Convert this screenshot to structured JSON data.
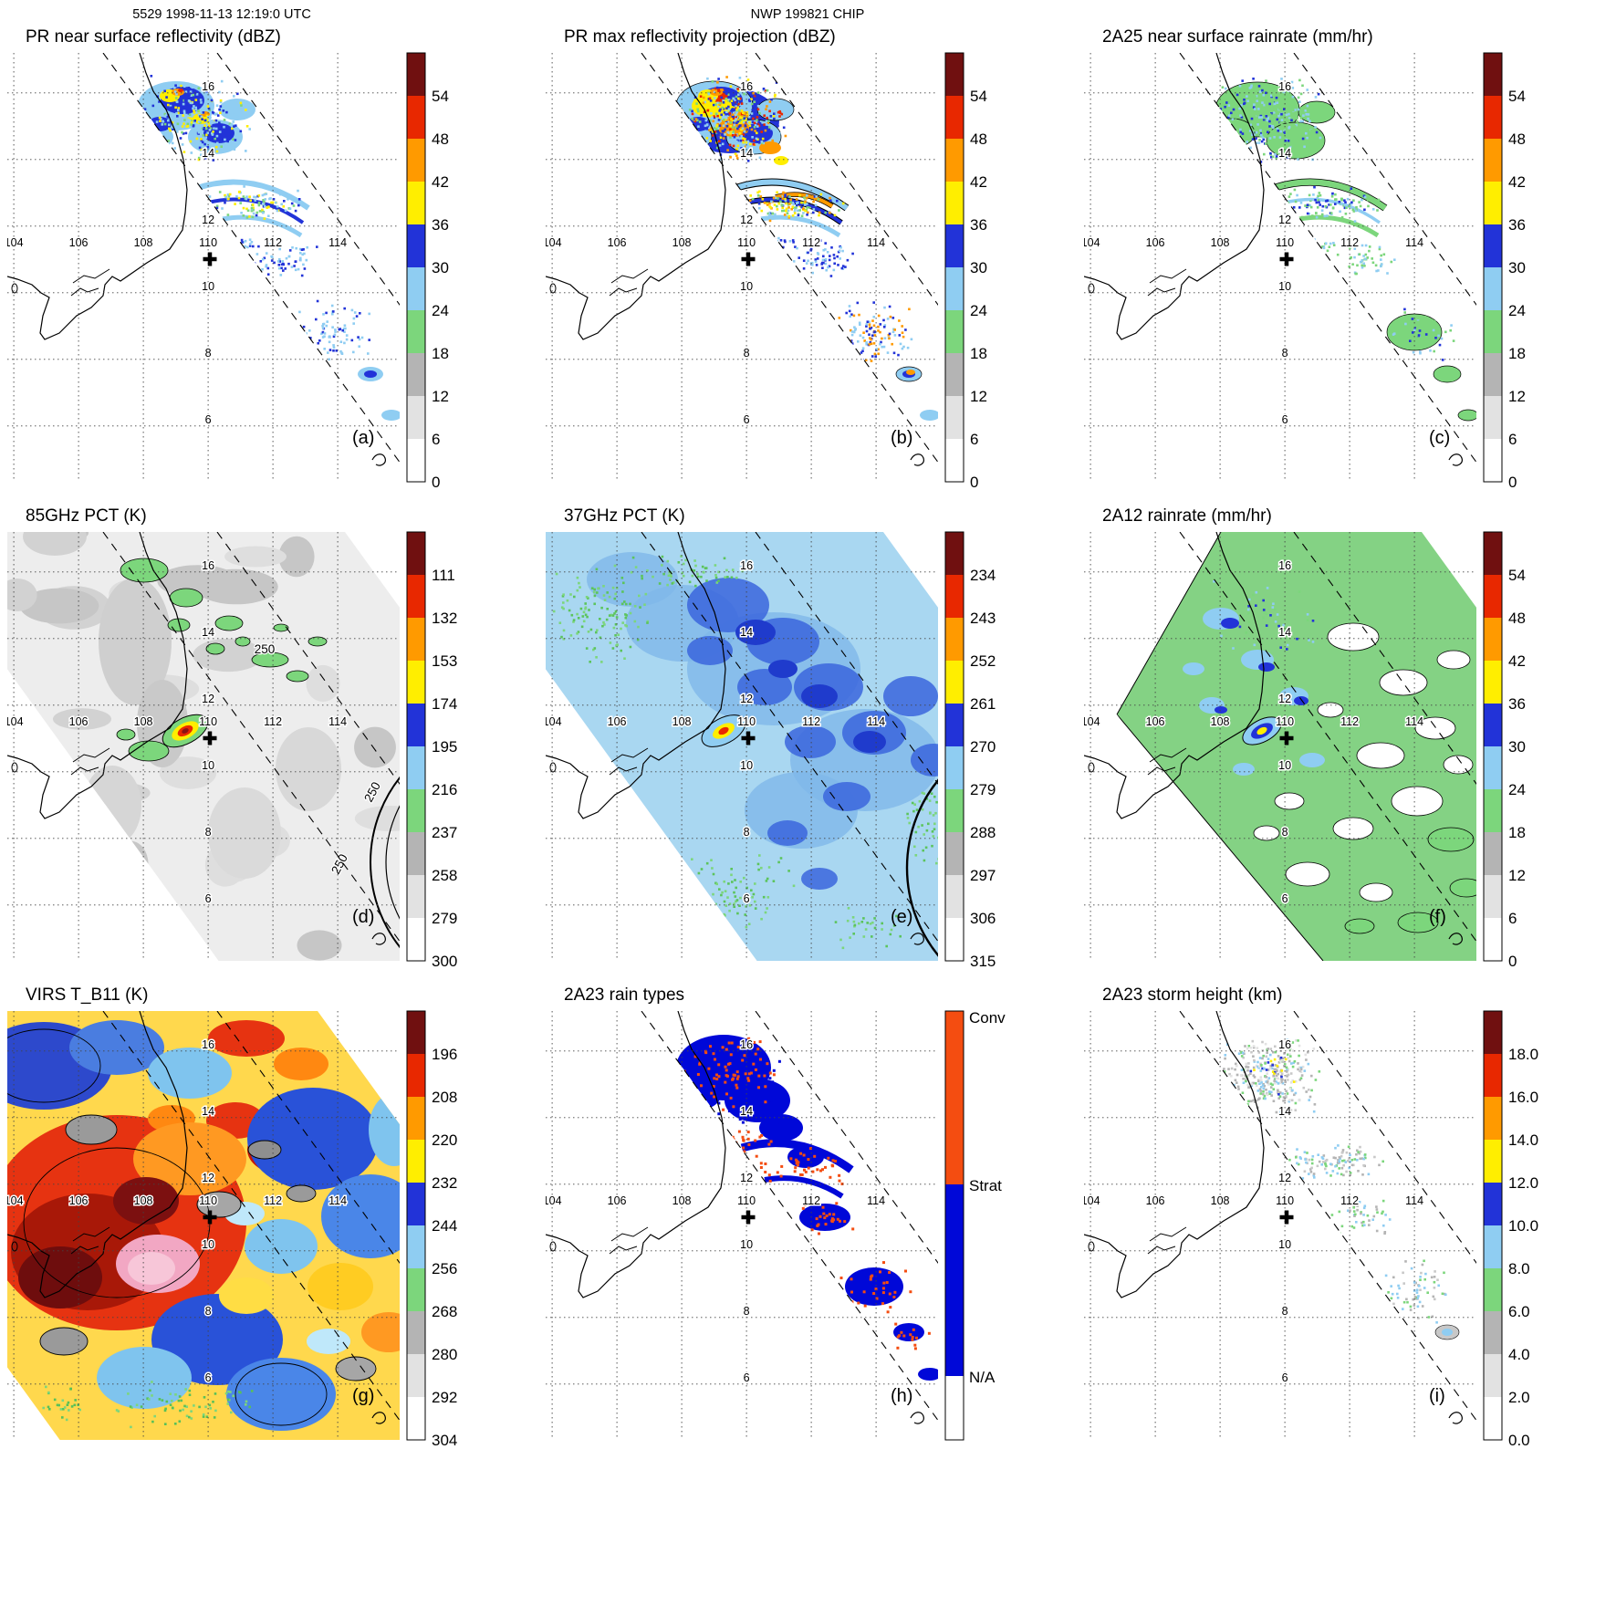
{
  "header": {
    "left": "5529 1998-11-13 12:19:0 UTC",
    "center": "NWP 199821 CHIP"
  },
  "colors": {
    "background": "#ffffff",
    "scale10": [
      "#ffffff",
      "#e2e2e2",
      "#b4b4b4",
      "#7cd67c",
      "#8fcdf2",
      "#2233d8",
      "#ffee00",
      "#ff9a00",
      "#e82800",
      "#701010"
    ],
    "rain_types": {
      "conv": "#f44d11",
      "strat": "#0008d8",
      "na": "#ffffff"
    }
  },
  "chart_data": {
    "type": "heatmap",
    "subtype": "satellite-map-panel-grid",
    "grid": "3x3",
    "projection": "lon-lat",
    "lon_ticks": [
      104,
      106,
      108,
      110,
      112,
      114
    ],
    "lat_ticks": [
      16,
      14,
      12,
      10,
      8,
      6
    ],
    "gridlines": "dotted, every 2 degrees",
    "swath": "two dashed parallel lines mark the PR swath running from upper middle to lower right",
    "panels": [
      {
        "key": "a",
        "label": "(a)",
        "title": "PR near surface reflectivity (dBZ)",
        "cbar_ticks": [
          "54",
          "48",
          "42",
          "36",
          "30",
          "24",
          "18",
          "12",
          "6",
          "0"
        ]
      },
      {
        "key": "b",
        "label": "(b)",
        "title": "PR max reflectivity projection (dBZ)",
        "cbar_ticks": [
          "54",
          "48",
          "42",
          "36",
          "30",
          "24",
          "18",
          "12",
          "6",
          "0"
        ]
      },
      {
        "key": "c",
        "label": "(c)",
        "title": "2A25 near surface rainrate (mm/hr)",
        "cbar_ticks": [
          "54",
          "48",
          "42",
          "36",
          "30",
          "24",
          "18",
          "12",
          "6",
          "0"
        ]
      },
      {
        "key": "d",
        "label": "(d)",
        "title": "85GHz PCT (K)",
        "cbar_ticks": [
          "111",
          "132",
          "153",
          "174",
          "195",
          "216",
          "237",
          "258",
          "279",
          "300"
        ],
        "annotations": [
          "250",
          "250",
          "250"
        ]
      },
      {
        "key": "e",
        "label": "(e)",
        "title": "37GHz PCT (K)",
        "cbar_ticks": [
          "234",
          "243",
          "252",
          "261",
          "270",
          "279",
          "288",
          "297",
          "306",
          "315"
        ]
      },
      {
        "key": "f",
        "label": "(f)",
        "title": "2A12 rainrate (mm/hr)",
        "cbar_ticks": [
          "54",
          "48",
          "42",
          "36",
          "30",
          "24",
          "18",
          "12",
          "6",
          "0"
        ]
      },
      {
        "key": "g",
        "label": "(g)",
        "title": "VIRS T_B11 (K)",
        "cbar_ticks": [
          "196",
          "208",
          "220",
          "232",
          "244",
          "256",
          "268",
          "280",
          "292",
          "304"
        ]
      },
      {
        "key": "h",
        "label": "(h)",
        "title": "2A23 rain types",
        "cbar_labels": [
          "Conv",
          "Strat",
          "N/A"
        ]
      },
      {
        "key": "i",
        "label": "(i)",
        "title": "2A23 storm height (km)",
        "cbar_ticks": [
          "18.0",
          "16.0",
          "14.0",
          "12.0",
          "10.0",
          "8.0",
          "6.0",
          "4.0",
          "2.0",
          "0.0"
        ]
      }
    ]
  }
}
